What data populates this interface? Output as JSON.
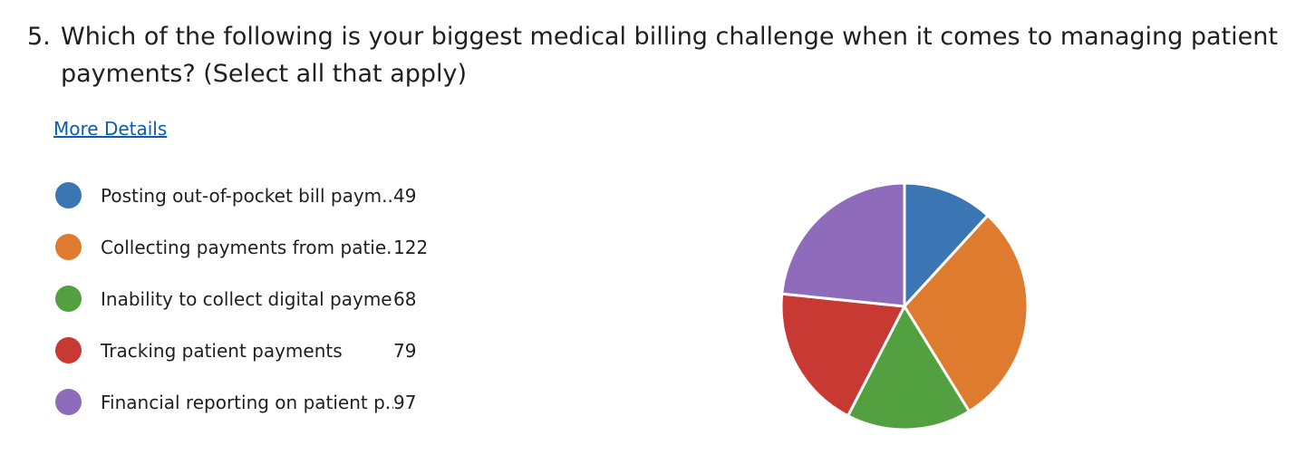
{
  "question": {
    "number": "5.",
    "text": "Which of the following is your biggest medical billing challenge when it comes to managing patient payments? (Select all that apply)"
  },
  "details_link": "More Details",
  "chart_data": {
    "type": "pie",
    "categories": [
      "Posting out-of-pocket bill paym...",
      "Collecting payments from patie...",
      "Inability to collect digital payme...",
      "Tracking patient payments",
      "Financial reporting on patient p..."
    ],
    "values": [
      49,
      122,
      68,
      79,
      97
    ],
    "colors": [
      "#3b75b4",
      "#de7b2e",
      "#53a040",
      "#c83934",
      "#8e6bbb"
    ],
    "start": "12 o'clock",
    "direction": "clockwise",
    "legend_position": "left"
  }
}
